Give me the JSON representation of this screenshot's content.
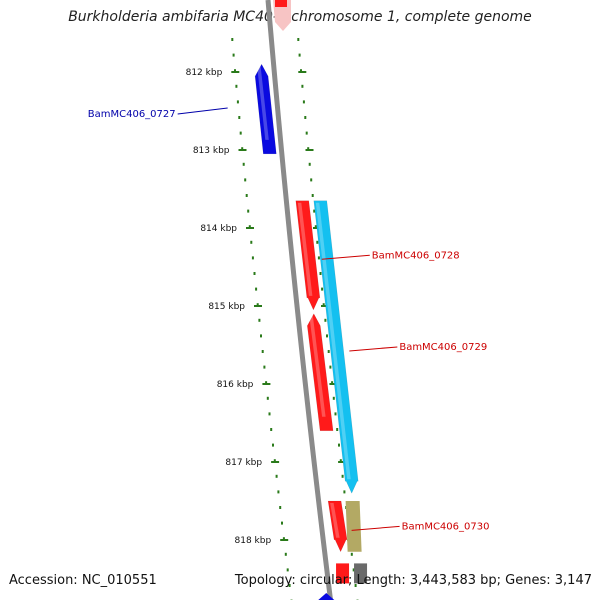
{
  "title": "Burkholderia ambifaria MC40-6 chromosome 1, complete genome",
  "footer": {
    "accession": "Accession: NC_010551",
    "summary": "Topology: circular; Length: 3,443,583 bp; Genes: 3,147"
  },
  "ticks": [
    {
      "label": "812 kbp",
      "kbp": 812
    },
    {
      "label": "813 kbp",
      "kbp": 813
    },
    {
      "label": "814 kbp",
      "kbp": 814
    },
    {
      "label": "815 kbp",
      "kbp": 815
    },
    {
      "label": "816 kbp",
      "kbp": 816
    },
    {
      "label": "817 kbp",
      "kbp": 817
    },
    {
      "label": "818 kbp",
      "kbp": 818
    }
  ],
  "colors": {
    "backbone": "#8a8a8a",
    "tick": "#2a7a1a",
    "label_blue": "#0000aa",
    "label_red": "#cc0000"
  },
  "genes": [
    {
      "name": "BamMC406_0727",
      "strand": "-",
      "track": "inner",
      "start_kbp": 811.9,
      "end_kbp": 813.05,
      "color": "#0a0ae0",
      "label_color": "#0000aa",
      "labeled": true
    },
    {
      "name": "",
      "strand": "-",
      "track": "outer",
      "start_kbp": 815.1,
      "end_kbp": 816.6,
      "color": "#ff1a1a",
      "labeled": false
    },
    {
      "name": "BamMC406_0728",
      "strand": "+",
      "track": "outer",
      "start_kbp": 813.65,
      "end_kbp": 815.05,
      "color": "#ff1a1a",
      "label_color": "#cc0000",
      "labeled": true
    },
    {
      "name": "BamMC406_0729",
      "strand": "+",
      "track": "cog",
      "start_kbp": 813.65,
      "end_kbp": 817.4,
      "color": "#14c0f0",
      "label_color": "#cc0000",
      "labeled": true
    },
    {
      "name": "BamMC406_0730",
      "strand": "+",
      "track": "outer",
      "start_kbp": 817.5,
      "end_kbp": 818.15,
      "color": "#ff1a1a",
      "label_color": "#cc0000",
      "labeled": true
    }
  ]
}
